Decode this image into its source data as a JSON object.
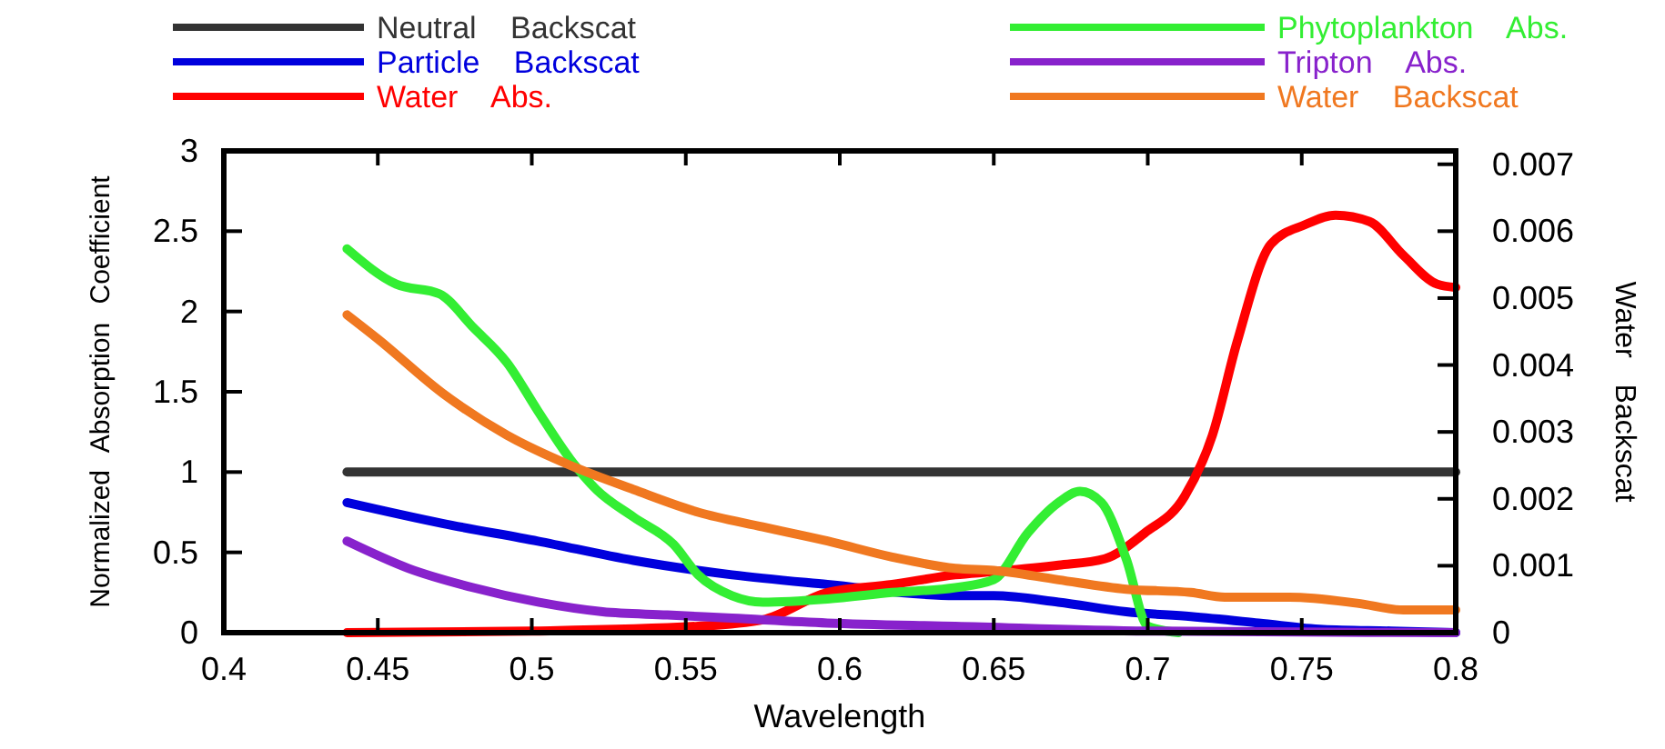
{
  "chart_data": {
    "type": "line",
    "xlabel": "Wavelength",
    "ylabel": "Normalized Absorption Coefficient",
    "y2label": "Water Backscat",
    "xlim": [
      0.4,
      0.8
    ],
    "xticks": [
      0.4,
      0.45,
      0.5,
      0.55,
      0.6,
      0.65,
      0.7,
      0.75,
      0.8
    ],
    "ylim": [
      0,
      3
    ],
    "yticks": [
      0,
      0.5,
      1,
      1.5,
      2,
      2.5,
      3
    ],
    "y2lim": [
      0,
      0.0072
    ],
    "y2ticks": [
      0,
      0.001,
      0.002,
      0.003,
      0.004,
      0.005,
      0.006,
      0.007
    ],
    "grid": false,
    "legend": "top",
    "line_style": "solid",
    "marker": "none",
    "series": [
      {
        "name": "Neutral Backscat",
        "color": "#333333",
        "x": [
          0.44,
          0.8
        ],
        "values": [
          1,
          1
        ]
      },
      {
        "name": "Particle Backscat",
        "color": "#0000dd",
        "x": [
          0.44,
          0.471,
          0.502,
          0.533,
          0.565,
          0.596,
          0.6375,
          0.65,
          0.671,
          0.693,
          0.714,
          0.736,
          0.757,
          0.779,
          0.8
        ],
        "values": [
          0.81,
          0.68,
          0.57,
          0.45,
          0.36,
          0.3,
          0.23,
          0.23,
          0.19,
          0.13,
          0.1,
          0.06,
          0.02,
          0.01,
          0
        ]
      },
      {
        "name": "Water Abs.",
        "color": "#ff0000",
        "x": [
          0.44,
          0.5,
          0.554,
          0.575,
          0.596,
          0.617,
          0.6375,
          0.65,
          0.671,
          0.686,
          0.699,
          0.712,
          0.721,
          0.729,
          0.74,
          0.751,
          0.761,
          0.772,
          0.783,
          0.794,
          0.8
        ],
        "values": [
          0,
          0.01,
          0.04,
          0.08,
          0.25,
          0.3,
          0.36,
          0.38,
          0.42,
          0.46,
          0.62,
          0.85,
          1.23,
          1.81,
          2.42,
          2.54,
          2.6,
          2.56,
          2.35,
          2.17,
          2.15
        ]
      },
      {
        "name": "Phytoplankton Abs.",
        "color": "#33ee33",
        "x": [
          0.44,
          0.456,
          0.47,
          0.481,
          0.492,
          0.502,
          0.5125,
          0.521,
          0.533,
          0.546,
          0.554,
          0.565,
          0.575,
          0.596,
          0.617,
          0.6375,
          0.65,
          0.661,
          0.671,
          0.678,
          0.685,
          0.693,
          0.7,
          0.71
        ],
        "values": [
          2.39,
          2.17,
          2.11,
          1.9,
          1.68,
          1.38,
          1.08,
          0.89,
          0.72,
          0.55,
          0.36,
          0.23,
          0.19,
          0.21,
          0.25,
          0.28,
          0.33,
          0.62,
          0.81,
          0.88,
          0.81,
          0.46,
          0.04,
          0
        ]
      },
      {
        "name": "Tripton Abs.",
        "color": "#8822cc",
        "x": [
          0.44,
          0.46,
          0.481,
          0.502,
          0.523,
          0.544,
          0.565,
          0.596,
          0.6375,
          0.7,
          0.8
        ],
        "values": [
          0.57,
          0.4,
          0.28,
          0.19,
          0.13,
          0.11,
          0.09,
          0.06,
          0.04,
          0.01,
          0
        ]
      },
      {
        "name": "Water Backscat",
        "color": "#f07820",
        "axis": "y2",
        "x": [
          0.44,
          0.45,
          0.471,
          0.492,
          0.5125,
          0.533,
          0.554,
          0.575,
          0.596,
          0.617,
          0.6375,
          0.65,
          0.671,
          0.693,
          0.714,
          0.725,
          0.746,
          0.768,
          0.783,
          0.8
        ],
        "values": [
          0.00475,
          0.00439,
          0.00358,
          0.00295,
          0.0025,
          0.00214,
          0.0018,
          0.00158,
          0.00137,
          0.00113,
          0.00096,
          0.00093,
          0.00079,
          0.00065,
          0.0006,
          0.00053,
          0.00053,
          0.00044,
          0.00034,
          0.00034
        ]
      }
    ]
  }
}
